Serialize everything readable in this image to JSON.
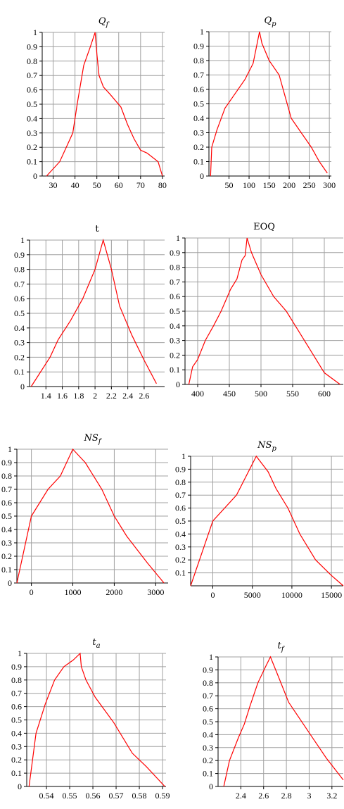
{
  "chart_data": [
    {
      "type": "line",
      "title": "Q",
      "title_sub": "f",
      "xlim": [
        25,
        81
      ],
      "ylim": [
        0,
        1
      ],
      "x_ticks": [
        30,
        40,
        50,
        60,
        70,
        80
      ],
      "x_tick_labels": [
        "30",
        "40",
        "50",
        "60",
        "70",
        "80"
      ],
      "y_ticks": [
        0,
        0.1,
        0.2,
        0.3,
        0.4,
        0.5,
        0.6,
        0.7,
        0.8,
        0.9,
        1
      ],
      "y_tick_labels": [
        "0",
        "0.1",
        "0.2",
        "0.3",
        "0.4",
        "0.5",
        "0.6",
        "0.7",
        "0.8",
        "0.9",
        "1"
      ],
      "grid": "on",
      "color": "#ff0000",
      "x": [
        27,
        33,
        36,
        39,
        41,
        44,
        47,
        49.2,
        50,
        51,
        53,
        56,
        61,
        64,
        67,
        70,
        73,
        78,
        80
      ],
      "y": [
        0,
        0.1,
        0.2,
        0.3,
        0.5,
        0.77,
        0.9,
        1,
        0.85,
        0.7,
        0.62,
        0.57,
        0.48,
        0.36,
        0.26,
        0.18,
        0.16,
        0.1,
        0
      ]
    },
    {
      "type": "line",
      "title": "Q",
      "title_sub": "p",
      "xlim": [
        0,
        305
      ],
      "ylim": [
        0,
        1
      ],
      "x_ticks": [
        50,
        100,
        150,
        200,
        250,
        300
      ],
      "x_tick_labels": [
        "50",
        "100",
        "150",
        "200",
        "250",
        "300"
      ],
      "y_ticks": [
        0,
        0.1,
        0.2,
        0.3,
        0.4,
        0.5,
        0.6,
        0.7,
        0.8,
        0.9,
        1
      ],
      "y_tick_labels": [
        "0",
        "0.1",
        "0.2",
        "0.3",
        "0.4",
        "0.5",
        "0.6",
        "0.7",
        "0.8",
        "0.9",
        "1"
      ],
      "grid": "on",
      "color": "#ff0000",
      "x": [
        4,
        7,
        20,
        40,
        60,
        90,
        110,
        126,
        132,
        150,
        175,
        190,
        205,
        230,
        255,
        275,
        295
      ],
      "y": [
        0,
        0.2,
        0.32,
        0.47,
        0.55,
        0.67,
        0.78,
        1,
        0.92,
        0.8,
        0.7,
        0.55,
        0.4,
        0.3,
        0.2,
        0.1,
        0.02
      ]
    },
    {
      "type": "line",
      "title": "t",
      "title_sub": "",
      "xlim": [
        1.2,
        2.85
      ],
      "ylim": [
        0,
        1
      ],
      "x_ticks": [
        1.4,
        1.6,
        1.8,
        2.0,
        2.2,
        2.4,
        2.6
      ],
      "x_tick_labels": [
        "1.4",
        "1.6",
        "1.8",
        "2",
        "2.2",
        "2.4",
        "2.6"
      ],
      "y_ticks": [
        0,
        0.1,
        0.2,
        0.3,
        0.4,
        0.5,
        0.6,
        0.7,
        0.8,
        0.9,
        1
      ],
      "y_tick_labels": [
        "0",
        "0.1",
        "0.2",
        "0.3",
        "0.4",
        "0.5",
        "0.6",
        "0.7",
        "0.8",
        "0.9",
        "1"
      ],
      "grid": "on",
      "color": "#ff0000",
      "x": [
        1.22,
        1.45,
        1.55,
        1.7,
        1.85,
        2.0,
        2.1,
        2.2,
        2.3,
        2.45,
        2.6,
        2.75
      ],
      "y": [
        0,
        0.2,
        0.32,
        0.45,
        0.6,
        0.8,
        1,
        0.8,
        0.55,
        0.35,
        0.18,
        0.02
      ]
    },
    {
      "type": "line",
      "title": "EOQ",
      "title_sub": "",
      "xlim": [
        380,
        630
      ],
      "ylim": [
        0,
        1
      ],
      "x_ticks": [
        400,
        450,
        500,
        550,
        600
      ],
      "x_tick_labels": [
        "400",
        "450",
        "500",
        "550",
        "600"
      ],
      "y_ticks": [
        0,
        0.1,
        0.2,
        0.3,
        0.4,
        0.5,
        0.6,
        0.7,
        0.8,
        0.9,
        1
      ],
      "y_tick_labels": [
        "0",
        "0.1",
        "0.2",
        "0.3",
        "0.4",
        "0.5",
        "0.6",
        "0.7",
        "0.8",
        "0.9",
        "1"
      ],
      "grid": "on",
      "color": "#ff0000",
      "x": [
        386,
        392,
        400,
        412,
        425,
        437,
        452,
        462,
        470,
        475,
        478,
        485,
        500,
        520,
        540,
        560,
        580,
        600,
        625
      ],
      "y": [
        0,
        0.12,
        0.17,
        0.3,
        0.4,
        0.5,
        0.65,
        0.72,
        0.85,
        0.88,
        1,
        0.9,
        0.75,
        0.6,
        0.5,
        0.36,
        0.22,
        0.08,
        0
      ]
    },
    {
      "type": "line",
      "title": "NS",
      "title_sub": "f",
      "xlim": [
        -350,
        3300
      ],
      "ylim": [
        0,
        1
      ],
      "x_ticks": [
        0,
        1000,
        2000,
        3000
      ],
      "x_tick_labels": [
        "0",
        "1000",
        "2000",
        "3000"
      ],
      "y_ticks": [
        0,
        0.1,
        0.2,
        0.3,
        0.4,
        0.5,
        0.6,
        0.7,
        0.8,
        0.9,
        1
      ],
      "y_tick_labels": [
        "0",
        "0.1",
        "0.2",
        "0.3",
        "0.4",
        "0.5",
        "0.6",
        "0.7",
        "0.8",
        "0.9",
        "1"
      ],
      "grid": "on",
      "color": "#ff0000",
      "x": [
        -350,
        0,
        400,
        700,
        1000,
        1300,
        1700,
        2000,
        2300,
        2800,
        3200
      ],
      "y": [
        0,
        0.5,
        0.7,
        0.8,
        1,
        0.9,
        0.7,
        0.5,
        0.35,
        0.15,
        0
      ]
    },
    {
      "type": "line",
      "title": "NS",
      "title_sub": "p",
      "xlim": [
        -2800,
        16500
      ],
      "ylim": [
        0,
        1
      ],
      "x_ticks": [
        0,
        5000,
        10000,
        15000
      ],
      "x_tick_labels": [
        "0",
        "5000",
        "10000",
        "15000"
      ],
      "y_ticks": [
        0.1,
        0.2,
        0.3,
        0.4,
        0.5,
        0.6,
        0.7,
        0.8,
        0.9,
        1
      ],
      "y_tick_labels": [
        "0.1",
        "0.2",
        "0.3",
        "0.4",
        "0.5",
        "0.6",
        "0.7",
        "0.8",
        "0.9",
        "1"
      ],
      "grid": "on",
      "color": "#ff0000",
      "x": [
        -2800,
        0,
        3000,
        5500,
        7000,
        8000,
        9500,
        11000,
        13000,
        15000,
        16500
      ],
      "y": [
        0,
        0.5,
        0.7,
        1,
        0.88,
        0.75,
        0.6,
        0.4,
        0.2,
        0.08,
        0
      ]
    },
    {
      "type": "line",
      "title": "t",
      "title_sub": "a",
      "xlim": [
        0.5315,
        0.5915
      ],
      "ylim": [
        0,
        1
      ],
      "x_ticks": [
        0.54,
        0.55,
        0.56,
        0.57,
        0.58,
        0.59
      ],
      "x_tick_labels": [
        "0.54",
        "0.55",
        "0.56",
        "0.57",
        "0.58",
        "0.59"
      ],
      "y_ticks": [
        0,
        0.1,
        0.2,
        0.3,
        0.4,
        0.5,
        0.6,
        0.7,
        0.8,
        0.9,
        1
      ],
      "y_tick_labels": [
        "0",
        "0.1",
        "0.2",
        "0.3",
        "0.4",
        "0.5",
        "0.6",
        "0.7",
        "0.8",
        "0.9",
        "1"
      ],
      "grid": "on",
      "color": "#ff0000",
      "x": [
        0.5325,
        0.5355,
        0.5395,
        0.5435,
        0.5475,
        0.5515,
        0.5545,
        0.555,
        0.557,
        0.561,
        0.569,
        0.577,
        0.583,
        0.591
      ],
      "y": [
        0,
        0.4,
        0.62,
        0.8,
        0.9,
        0.95,
        1,
        0.9,
        0.8,
        0.67,
        0.48,
        0.25,
        0.15,
        0
      ]
    },
    {
      "type": "line",
      "title": "t",
      "title_sub": "f",
      "xlim": [
        2.2,
        3.3
      ],
      "ylim": [
        0,
        1
      ],
      "x_ticks": [
        2.4,
        2.6,
        2.8,
        3.0,
        3.2
      ],
      "x_tick_labels": [
        "2.4",
        "2.6",
        "2.8",
        "3",
        "3.2"
      ],
      "y_ticks": [
        0,
        0.1,
        0.2,
        0.3,
        0.4,
        0.5,
        0.6,
        0.7,
        0.8,
        0.9,
        1
      ],
      "y_tick_labels": [
        "0",
        "0.1",
        "0.2",
        "0.3",
        "0.4",
        "0.5",
        "0.6",
        "0.7",
        "0.8",
        "0.9",
        "1"
      ],
      "grid": "on",
      "color": "#ff0000",
      "x": [
        2.25,
        2.3,
        2.38,
        2.43,
        2.48,
        2.55,
        2.62,
        2.66,
        2.72,
        2.82,
        2.95,
        3.05,
        3.15,
        3.3
      ],
      "y": [
        0,
        0.2,
        0.38,
        0.48,
        0.62,
        0.8,
        0.93,
        1,
        0.87,
        0.65,
        0.48,
        0.35,
        0.22,
        0.05
      ]
    }
  ]
}
